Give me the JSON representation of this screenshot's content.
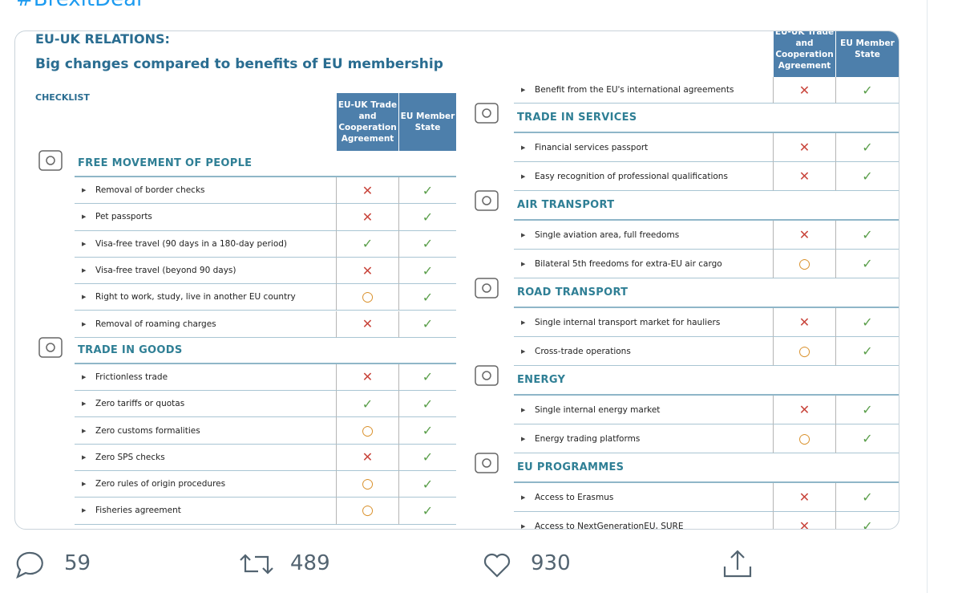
{
  "tweet": {
    "hashtag": "#BrexitDeal",
    "replies": "59",
    "retweets": "489",
    "likes": "930",
    "image": {
      "title": "EU-UK RELATIONS:",
      "subtitle": "Big changes compared to benefits of EU membership",
      "checklist": "CHECKLIST",
      "columns": [
        "EU-UK Trade and Cooperation Agreement",
        "EU Member State"
      ],
      "left": [
        {
          "title": "FREE MOVEMENT OF PEOPLE",
          "rows": [
            {
              "label": "Removal of border checks",
              "marks": [
                "✕",
                "✓"
              ]
            },
            {
              "label": "Pet passports",
              "marks": [
                "✕",
                "✓"
              ]
            },
            {
              "label": "Visa-free travel (90 days in a 180-day period)",
              "marks": [
                "✓",
                "✓"
              ]
            },
            {
              "label": "Visa-free travel (beyond 90 days)",
              "marks": [
                "✕",
                "✓"
              ]
            },
            {
              "label": "Right to work, study, live in another EU country",
              "marks": [
                "○",
                "✓"
              ]
            },
            {
              "label": "Removal of roaming charges",
              "marks": [
                "✕",
                "✓"
              ]
            }
          ]
        },
        {
          "title": "TRADE IN GOODS",
          "rows": [
            {
              "label": "Frictionless trade",
              "marks": [
                "✕",
                "✓"
              ]
            },
            {
              "label": "Zero tariffs or quotas",
              "marks": [
                "✓",
                "✓"
              ]
            },
            {
              "label": "Zero customs formalities",
              "marks": [
                "○",
                "✓"
              ]
            },
            {
              "label": "Zero SPS checks",
              "marks": [
                "✕",
                "✓"
              ]
            },
            {
              "label": "Zero rules of origin procedures",
              "marks": [
                "○",
                "✓"
              ]
            },
            {
              "label": "Fisheries agreement",
              "marks": [
                "○",
                "✓"
              ]
            }
          ]
        }
      ],
      "right_continued": [
        {
          "label": "Benefit from the EU's international agreements",
          "marks": [
            "✕",
            "✓"
          ]
        }
      ],
      "right": [
        {
          "title": "TRADE IN SERVICES",
          "rows": [
            {
              "label": "Financial services passport",
              "marks": [
                "✕",
                "✓"
              ]
            },
            {
              "label": "Easy recognition of professional qualifications",
              "marks": [
                "✕",
                "✓"
              ]
            }
          ]
        },
        {
          "title": "AIR TRANSPORT",
          "rows": [
            {
              "label": "Single aviation area, full freedoms",
              "marks": [
                "✕",
                "✓"
              ]
            },
            {
              "label": "Bilateral 5th freedoms for extra-EU air cargo",
              "marks": [
                "○",
                "✓"
              ]
            }
          ]
        },
        {
          "title": "ROAD TRANSPORT",
          "rows": [
            {
              "label": "Single internal transport market for hauliers",
              "marks": [
                "✕",
                "✓"
              ]
            },
            {
              "label": "Cross-trade operations",
              "marks": [
                "○",
                "✓"
              ]
            }
          ]
        },
        {
          "title": "ENERGY",
          "rows": [
            {
              "label": "Single internal energy market",
              "marks": [
                "✕",
                "✓"
              ]
            },
            {
              "label": "Energy trading platforms",
              "marks": [
                "○",
                "✓"
              ]
            }
          ]
        },
        {
          "title": "EU PROGRAMMES",
          "rows": [
            {
              "label": "Access to Erasmus",
              "marks": [
                "✕",
                "✓"
              ]
            },
            {
              "label": "Access to NextGenerationEU, SURE",
              "marks": [
                "✕",
                "✓"
              ]
            }
          ]
        }
      ]
    }
  }
}
